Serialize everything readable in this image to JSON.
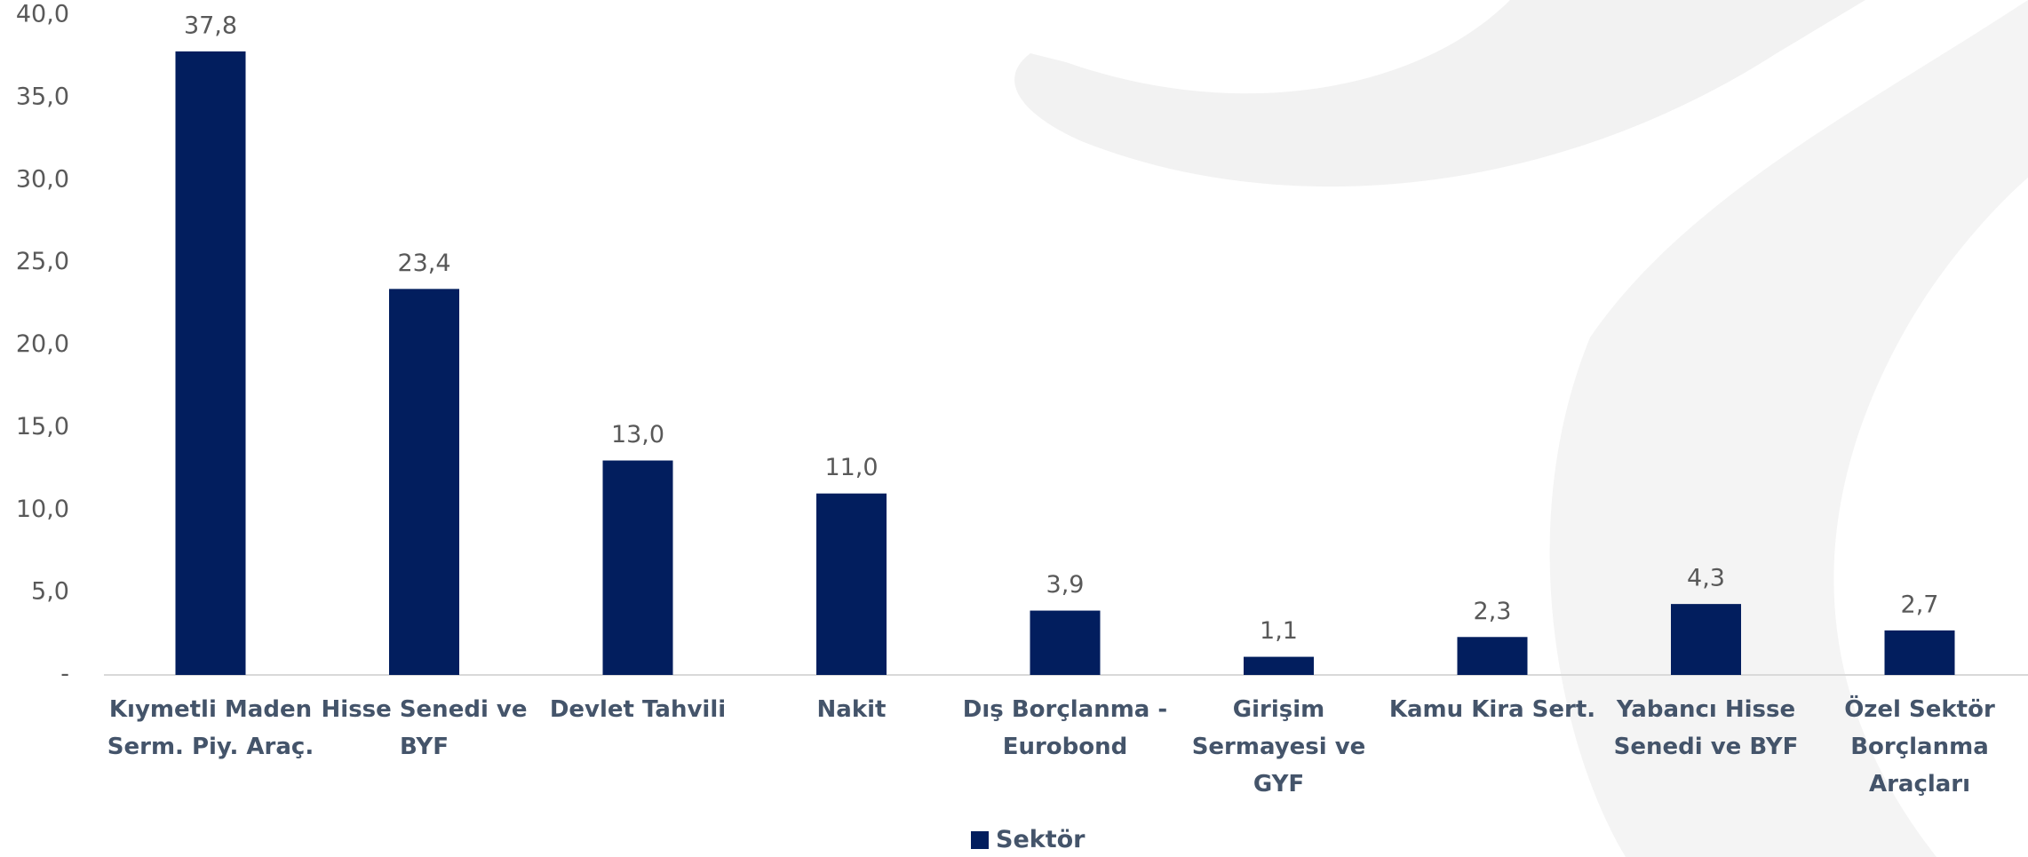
{
  "chart_data": {
    "type": "bar",
    "categories": [
      "Kıymetli Maden Serm. Piy. Araç.",
      "Hisse Senedi ve BYF",
      "Devlet Tahvili",
      "Nakit",
      "Dış Borçlanma - Eurobond",
      "Girişim Sermayesi ve GYF",
      "Kamu Kira Sert.",
      "Yabancı Hisse Senedi ve BYF",
      "Özel Sektör Borçlanma Araçları"
    ],
    "series": [
      {
        "name": "Sektör",
        "color": "#021e5e",
        "values": [
          37.8,
          23.4,
          13.0,
          11.0,
          3.9,
          1.1,
          2.3,
          4.3,
          2.7
        ],
        "value_labels": [
          "37,8",
          "23,4",
          "13,0",
          "11,0",
          "3,9",
          "1,1",
          "2,3",
          "4,3",
          "2,7"
        ]
      }
    ],
    "ylim": [
      0,
      40
    ],
    "yticks": [
      {
        "value": 0,
        "label": "-"
      },
      {
        "value": 5,
        "label": "5,0"
      },
      {
        "value": 10,
        "label": "10,0"
      },
      {
        "value": 15,
        "label": "15,0"
      },
      {
        "value": 20,
        "label": "20,0"
      },
      {
        "value": 25,
        "label": "25,0"
      },
      {
        "value": 30,
        "label": "30,0"
      },
      {
        "value": 35,
        "label": "35,0"
      },
      {
        "value": 40,
        "label": "40,0"
      }
    ],
    "legend": "bottom"
  }
}
